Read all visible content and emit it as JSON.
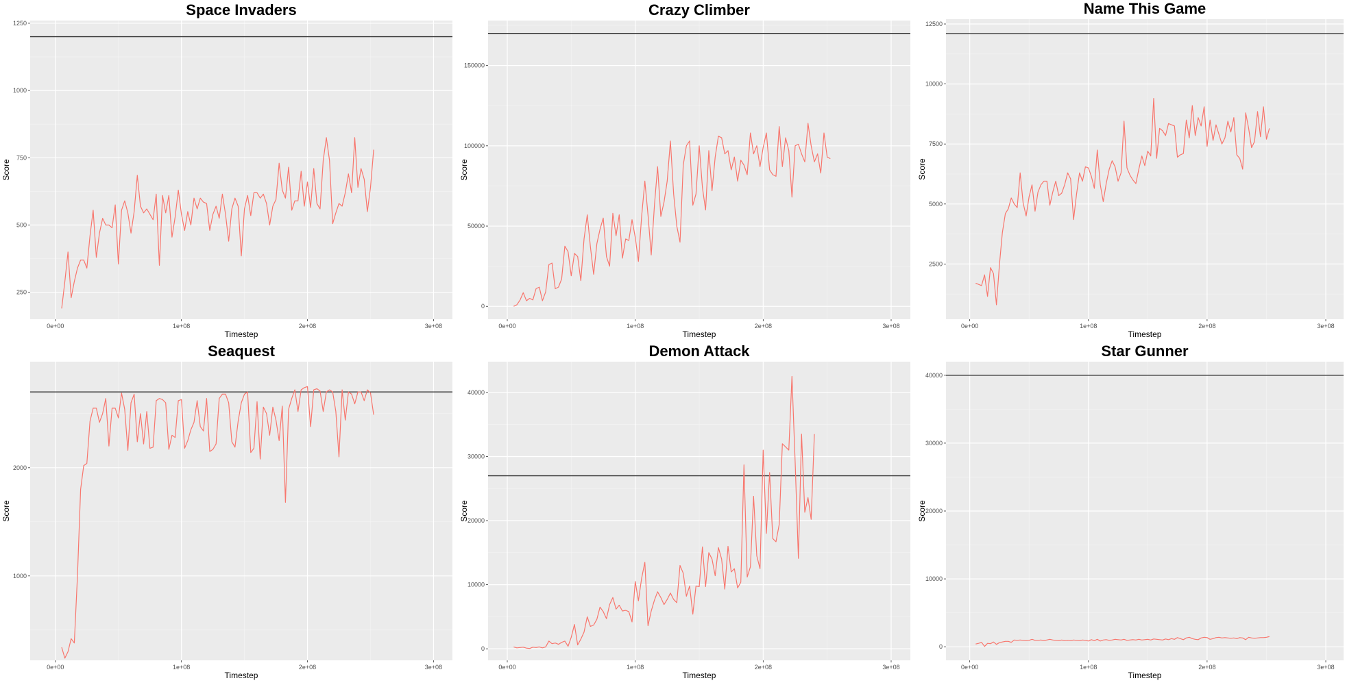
{
  "colors": {
    "panel_bg": "#EBEBEB",
    "grid_major": "#FFFFFF",
    "grid_minor": "#F5F5F5",
    "series": "#F8766D",
    "reference_line": "#333333"
  },
  "chart_data": [
    {
      "type": "line",
      "title": "Space Invaders",
      "xlabel": "Timestep",
      "ylabel": "Score",
      "xlim": [
        -20000000.0,
        315000000.0
      ],
      "ylim": [
        150,
        1260
      ],
      "x_ticks": [
        0,
        100000000.0,
        200000000.0,
        300000000.0
      ],
      "x_tick_labels": [
        "0e+00",
        "1e+08",
        "2e+08",
        "3e+08"
      ],
      "y_ticks": [
        250,
        500,
        750,
        1000,
        1250
      ],
      "y_tick_labels": [
        "250",
        "500",
        "750",
        "1000",
        "1250"
      ],
      "reference_line": 1200,
      "x_start": 5000000.0,
      "x_step": 2500000.0,
      "values": [
        190,
        290,
        400,
        230,
        290,
        340,
        370,
        370,
        340,
        460,
        555,
        380,
        470,
        525,
        500,
        500,
        490,
        575,
        355,
        555,
        590,
        545,
        470,
        550,
        685,
        570,
        545,
        560,
        540,
        520,
        615,
        350,
        610,
        545,
        610,
        455,
        530,
        630,
        540,
        480,
        550,
        500,
        600,
        560,
        600,
        585,
        580,
        480,
        540,
        570,
        525,
        615,
        540,
        440,
        560,
        600,
        570,
        385,
        560,
        610,
        535,
        620,
        620,
        600,
        615,
        580,
        500,
        570,
        595,
        730,
        630,
        600,
        715,
        555,
        590,
        590,
        700,
        570,
        660,
        565,
        710,
        580,
        560,
        740,
        825,
        740,
        505,
        545,
        580,
        570,
        620,
        690,
        620,
        825,
        640,
        710,
        670,
        550,
        640,
        780
      ]
    },
    {
      "type": "line",
      "title": "Crazy Climber",
      "xlabel": "Timestep",
      "ylabel": "Score",
      "xlim": [
        -15000000.0,
        315000000.0
      ],
      "ylim": [
        -8000,
        178000
      ],
      "x_ticks": [
        0,
        100000000.0,
        200000000.0,
        300000000.0
      ],
      "x_tick_labels": [
        "0e+00",
        "1e+08",
        "2e+08",
        "3e+08"
      ],
      "y_ticks": [
        0,
        50000,
        100000,
        150000
      ],
      "y_tick_labels": [
        "0",
        "50000",
        "100000",
        "150000"
      ],
      "reference_line": 170000,
      "x_start": 5000000.0,
      "x_step": 2500000.0,
      "values": [
        0,
        1000,
        4000,
        8500,
        3500,
        5000,
        4000,
        11000,
        12000,
        3500,
        9000,
        26000,
        27000,
        11000,
        12000,
        17000,
        37500,
        34000,
        19000,
        33000,
        31000,
        16000,
        42000,
        57000,
        37000,
        20000,
        39000,
        48000,
        55000,
        31000,
        25000,
        58000,
        44000,
        57000,
        30000,
        42000,
        41000,
        54000,
        43000,
        28000,
        56000,
        78000,
        57000,
        32000,
        63000,
        87000,
        56000,
        65000,
        78000,
        103000,
        70000,
        50000,
        40000,
        88000,
        100000,
        103000,
        63000,
        70000,
        100000,
        74000,
        60000,
        97000,
        72000,
        93000,
        106000,
        105000,
        95000,
        97000,
        85000,
        93000,
        78000,
        91000,
        88000,
        82000,
        108000,
        95000,
        100000,
        87000,
        99000,
        108000,
        85000,
        82000,
        81000,
        112000,
        87000,
        105000,
        97000,
        68000,
        100000,
        101000,
        95000,
        90000,
        114000,
        100000,
        90000,
        95000,
        83000,
        108000,
        93000,
        92000
      ]
    },
    {
      "type": "line",
      "title": "Name This Game",
      "xlabel": "Timestep",
      "ylabel": "Score",
      "xlim": [
        -20000000.0,
        315000000.0
      ],
      "ylim": [
        200,
        12700
      ],
      "x_ticks": [
        0,
        100000000.0,
        200000000.0,
        300000000.0
      ],
      "x_tick_labels": [
        "0e+00",
        "1e+08",
        "2e+08",
        "3e+08"
      ],
      "y_ticks": [
        2500,
        5000,
        7500,
        10000,
        12500
      ],
      "y_tick_labels": [
        "2500",
        "5000",
        "7500",
        "10000",
        "12500"
      ],
      "reference_line": 12100,
      "x_start": 5000000.0,
      "x_step": 2500000.0,
      "values": [
        1700,
        1650,
        1600,
        2050,
        1150,
        2350,
        2100,
        800,
        2450,
        3800,
        4600,
        4800,
        5250,
        5000,
        4850,
        6300,
        5050,
        4500,
        5300,
        5800,
        4700,
        5500,
        5800,
        5950,
        5950,
        4950,
        5500,
        5950,
        5350,
        5450,
        5800,
        6300,
        6050,
        4350,
        5400,
        6300,
        5950,
        6550,
        6500,
        6150,
        5650,
        7250,
        5800,
        5100,
        5850,
        6450,
        6800,
        6550,
        5950,
        6300,
        8450,
        6500,
        6200,
        6000,
        5850,
        6450,
        7000,
        6600,
        7200,
        7000,
        9400,
        6900,
        8150,
        8050,
        7850,
        8350,
        8300,
        8250,
        6950,
        7050,
        7100,
        8500,
        7750,
        9100,
        7850,
        8600,
        8250,
        9050,
        7400,
        8500,
        7650,
        8300,
        7900,
        7500,
        7750,
        8450,
        8000,
        8600,
        7050,
        6900,
        6450,
        8800,
        8150,
        7350,
        7600,
        8850,
        7800,
        9050,
        7700,
        8150
      ]
    },
    {
      "type": "line",
      "title": "Seaquest",
      "xlabel": "Timestep",
      "ylabel": "Score",
      "xlim": [
        -20000000.0,
        315000000.0
      ],
      "ylim": [
        220,
        2980
      ],
      "x_ticks": [
        0,
        100000000.0,
        200000000.0,
        300000000.0
      ],
      "x_tick_labels": [
        "0e+00",
        "1e+08",
        "2e+08",
        "3e+08"
      ],
      "y_ticks": [
        1000,
        2000
      ],
      "y_tick_labels": [
        "1000",
        "2000"
      ],
      "reference_line": 2700,
      "x_start": 5000000.0,
      "x_step": 2500000.0,
      "values": [
        340,
        240,
        300,
        420,
        380,
        1000,
        1800,
        2020,
        2040,
        2430,
        2550,
        2550,
        2420,
        2500,
        2640,
        2200,
        2550,
        2550,
        2460,
        2690,
        2540,
        2160,
        2600,
        2680,
        2240,
        2500,
        2220,
        2520,
        2180,
        2190,
        2620,
        2640,
        2630,
        2600,
        2170,
        2300,
        2280,
        2620,
        2630,
        2180,
        2250,
        2350,
        2420,
        2620,
        2380,
        2340,
        2640,
        2150,
        2170,
        2220,
        2640,
        2680,
        2680,
        2600,
        2240,
        2190,
        2430,
        2600,
        2680,
        2700,
        2140,
        2180,
        2610,
        2080,
        2560,
        2500,
        2300,
        2560,
        2440,
        2250,
        2570,
        1680,
        2540,
        2640,
        2720,
        2520,
        2720,
        2740,
        2750,
        2380,
        2720,
        2730,
        2710,
        2520,
        2700,
        2720,
        2700,
        2520,
        2100,
        2720,
        2440,
        2700,
        2680,
        2590,
        2700,
        2700,
        2620,
        2720,
        2690,
        2490
      ]
    },
    {
      "type": "line",
      "title": "Demon Attack",
      "xlabel": "Timestep",
      "ylabel": "Score",
      "xlim": [
        -15000000.0,
        315000000.0
      ],
      "ylim": [
        -1800,
        44800
      ],
      "x_ticks": [
        0,
        100000000.0,
        200000000.0,
        300000000.0
      ],
      "x_tick_labels": [
        "0e+00",
        "1e+08",
        "2e+08",
        "3e+08"
      ],
      "y_ticks": [
        0,
        10000,
        20000,
        30000,
        40000
      ],
      "y_tick_labels": [
        "0",
        "10000",
        "20000",
        "30000",
        "40000"
      ],
      "reference_line": 27000,
      "x_start": 5000000.0,
      "x_step": 2500000.0,
      "values": [
        300,
        150,
        200,
        250,
        100,
        50,
        250,
        200,
        300,
        150,
        300,
        1200,
        800,
        900,
        700,
        1000,
        1200,
        400,
        1800,
        3800,
        600,
        1500,
        2600,
        5000,
        3500,
        3700,
        4600,
        6500,
        5800,
        4700,
        6900,
        8000,
        6200,
        6800,
        5900,
        6000,
        5800,
        4200,
        10500,
        7500,
        11000,
        13500,
        3600,
        5900,
        7600,
        8900,
        8000,
        6900,
        7700,
        8700,
        7700,
        7200,
        13000,
        11800,
        8200,
        9800,
        5400,
        9800,
        9700,
        15900,
        9700,
        15000,
        14000,
        11400,
        15800,
        14000,
        9300,
        16000,
        12000,
        12500,
        9500,
        10400,
        28700,
        11200,
        12800,
        23800,
        14500,
        12500,
        31000,
        18000,
        27500,
        17200,
        16700,
        19400,
        32000,
        31500,
        31000,
        42500,
        29000,
        14100,
        33500,
        21300,
        23600,
        20200,
        33500
      ]
    },
    {
      "type": "line",
      "title": "Star Gunner",
      "xlabel": "Timestep",
      "ylabel": "Score",
      "xlim": [
        -20000000.0,
        315000000.0
      ],
      "ylim": [
        -2000,
        42000
      ],
      "x_ticks": [
        0,
        100000000.0,
        200000000.0,
        300000000.0
      ],
      "x_tick_labels": [
        "0e+00",
        "1e+08",
        "2e+08",
        "3e+08"
      ],
      "y_ticks": [
        0,
        10000,
        20000,
        30000,
        40000
      ],
      "y_tick_labels": [
        "0",
        "10000",
        "20000",
        "30000",
        "40000"
      ],
      "reference_line": 40000,
      "x_start": 5000000.0,
      "x_step": 2500000.0,
      "values": [
        400,
        500,
        650,
        50,
        500,
        450,
        700,
        350,
        600,
        700,
        800,
        800,
        650,
        1000,
        950,
        1000,
        950,
        900,
        950,
        1100,
        950,
        950,
        1000,
        900,
        1000,
        1100,
        1000,
        950,
        900,
        1000,
        900,
        950,
        900,
        1000,
        950,
        900,
        1000,
        950,
        850,
        1050,
        900,
        1100,
        850,
        1000,
        1050,
        950,
        1000,
        1100,
        1050,
        1000,
        1100,
        950,
        1000,
        1050,
        1000,
        1100,
        1000,
        1050,
        1100,
        1000,
        1150,
        1100,
        1050,
        1000,
        1150,
        1050,
        1200,
        1100,
        1350,
        1200,
        1050,
        1300,
        1400,
        1200,
        1100,
        1050,
        1300,
        1400,
        1350,
        1100,
        1200,
        1350,
        1400,
        1300,
        1350,
        1300,
        1250,
        1300,
        1200,
        1350,
        1300,
        1050,
        1400,
        1300,
        1250,
        1300,
        1350,
        1350,
        1400,
        1500
      ]
    }
  ]
}
